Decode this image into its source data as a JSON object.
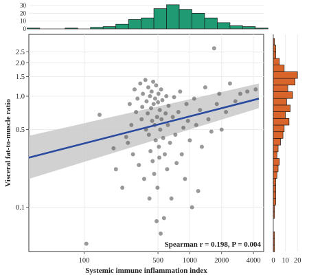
{
  "colors": {
    "points": "#555555",
    "line": "#2a4aa0",
    "ribbon": "#c9c9c9",
    "top_hist": "#1f9a73",
    "right_hist": "#d9652a",
    "grid": "#ececec"
  },
  "chart_data": [
    {
      "type": "scatter",
      "xlabel": "Systemic immune inflammation index",
      "ylabel": "Visceral fat-to-muscle ratio",
      "x_scale": "log",
      "y_scale": "log",
      "xlim": [
        30,
        5000
      ],
      "ylim": [
        0.04,
        3.6
      ],
      "x_ticks": [
        100,
        500,
        1000,
        2000,
        4000
      ],
      "y_ticks": [
        0.1,
        0.5,
        1.0,
        1.5,
        2.0,
        2.5
      ],
      "y_tick_labels": [
        "0.1",
        "0.5",
        "1.0",
        "1.5",
        "2.0",
        "2.5"
      ],
      "annotation": "Spearman r = 0.198, P = 0.004",
      "trend_line": {
        "type": "linear (log-log)",
        "x": [
          30,
          4500
        ],
        "y": [
          0.28,
          0.95
        ],
        "ci_lower": [
          0.18,
          0.78
        ],
        "ci_upper": [
          0.44,
          1.3
        ]
      },
      "points": [
        {
          "x": 105,
          "y": 0.047
        },
        {
          "x": 140,
          "y": 0.68
        },
        {
          "x": 190,
          "y": 0.34
        },
        {
          "x": 200,
          "y": 0.22
        },
        {
          "x": 230,
          "y": 0.15
        },
        {
          "x": 250,
          "y": 0.43
        },
        {
          "x": 260,
          "y": 0.38
        },
        {
          "x": 270,
          "y": 0.85
        },
        {
          "x": 280,
          "y": 0.55
        },
        {
          "x": 290,
          "y": 0.3
        },
        {
          "x": 300,
          "y": 1.15
        },
        {
          "x": 310,
          "y": 0.72
        },
        {
          "x": 320,
          "y": 0.95
        },
        {
          "x": 330,
          "y": 0.24
        },
        {
          "x": 340,
          "y": 1.3
        },
        {
          "x": 350,
          "y": 0.62
        },
        {
          "x": 355,
          "y": 0.8
        },
        {
          "x": 360,
          "y": 1.05
        },
        {
          "x": 370,
          "y": 0.18
        },
        {
          "x": 380,
          "y": 1.4
        },
        {
          "x": 385,
          "y": 0.5
        },
        {
          "x": 390,
          "y": 0.9
        },
        {
          "x": 400,
          "y": 0.7
        },
        {
          "x": 405,
          "y": 1.2
        },
        {
          "x": 410,
          "y": 0.45
        },
        {
          "x": 415,
          "y": 0.12
        },
        {
          "x": 420,
          "y": 1.0
        },
        {
          "x": 425,
          "y": 0.32
        },
        {
          "x": 430,
          "y": 0.78
        },
        {
          "x": 435,
          "y": 1.1
        },
        {
          "x": 440,
          "y": 0.6
        },
        {
          "x": 445,
          "y": 0.26
        },
        {
          "x": 450,
          "y": 1.35
        },
        {
          "x": 455,
          "y": 0.85
        },
        {
          "x": 460,
          "y": 0.2
        },
        {
          "x": 465,
          "y": 0.55
        },
        {
          "x": 470,
          "y": 0.95
        },
        {
          "x": 475,
          "y": 0.4
        },
        {
          "x": 480,
          "y": 1.25
        },
        {
          "x": 485,
          "y": 0.075
        },
        {
          "x": 490,
          "y": 0.65
        },
        {
          "x": 495,
          "y": 0.15
        },
        {
          "x": 500,
          "y": 0.88
        },
        {
          "x": 505,
          "y": 1.05
        },
        {
          "x": 510,
          "y": 0.35
        },
        {
          "x": 515,
          "y": 0.28
        },
        {
          "x": 520,
          "y": 0.75
        },
        {
          "x": 525,
          "y": 0.5
        },
        {
          "x": 530,
          "y": 0.058
        },
        {
          "x": 535,
          "y": 1.15
        },
        {
          "x": 540,
          "y": 0.62
        },
        {
          "x": 550,
          "y": 0.92
        },
        {
          "x": 560,
          "y": 0.42
        },
        {
          "x": 570,
          "y": 0.08
        },
        {
          "x": 580,
          "y": 0.3
        },
        {
          "x": 590,
          "y": 0.7
        },
        {
          "x": 600,
          "y": 1.0
        },
        {
          "x": 610,
          "y": 0.22
        },
        {
          "x": 620,
          "y": 0.55
        },
        {
          "x": 630,
          "y": 0.82
        },
        {
          "x": 650,
          "y": 0.38
        },
        {
          "x": 670,
          "y": 0.12
        },
        {
          "x": 690,
          "y": 0.65
        },
        {
          "x": 710,
          "y": 0.98
        },
        {
          "x": 730,
          "y": 0.45
        },
        {
          "x": 750,
          "y": 0.25
        },
        {
          "x": 780,
          "y": 0.72
        },
        {
          "x": 810,
          "y": 1.1
        },
        {
          "x": 840,
          "y": 0.3
        },
        {
          "x": 870,
          "y": 0.52
        },
        {
          "x": 900,
          "y": 0.18
        },
        {
          "x": 930,
          "y": 0.85
        },
        {
          "x": 960,
          "y": 0.6
        },
        {
          "x": 1000,
          "y": 0.4
        },
        {
          "x": 1050,
          "y": 0.1
        },
        {
          "x": 1100,
          "y": 0.95
        },
        {
          "x": 1150,
          "y": 0.55
        },
        {
          "x": 1200,
          "y": 0.14
        },
        {
          "x": 1250,
          "y": 0.75
        },
        {
          "x": 1300,
          "y": 0.35
        },
        {
          "x": 1400,
          "y": 1.2
        },
        {
          "x": 1500,
          "y": 0.62
        },
        {
          "x": 1600,
          "y": 0.48
        },
        {
          "x": 1700,
          "y": 2.7
        },
        {
          "x": 1800,
          "y": 0.85
        },
        {
          "x": 1900,
          "y": 1.05
        },
        {
          "x": 2000,
          "y": 0.5
        },
        {
          "x": 2200,
          "y": 0.72
        },
        {
          "x": 2400,
          "y": 1.3
        },
        {
          "x": 2700,
          "y": 0.9
        },
        {
          "x": 3000,
          "y": 1.05
        },
        {
          "x": 3500,
          "y": 1.1
        },
        {
          "x": 4200,
          "y": 1.15
        }
      ]
    },
    {
      "type": "bar",
      "role": "top marginal histogram",
      "orientation": "vertical",
      "y_ticks": [
        0,
        10,
        20,
        30
      ],
      "bins_log10_x_edges": [
        1.46,
        1.58,
        1.7,
        1.82,
        1.94,
        2.06,
        2.18,
        2.3,
        2.42,
        2.54,
        2.66,
        2.78,
        2.9,
        3.02,
        3.14,
        3.26,
        3.38,
        3.5,
        3.62,
        3.74
      ],
      "values": [
        1,
        0,
        0,
        1,
        0,
        2,
        3,
        6,
        12,
        14,
        26,
        31,
        25,
        20,
        14,
        8,
        4,
        3,
        1
      ]
    },
    {
      "type": "bar",
      "role": "right marginal histogram",
      "orientation": "horizontal",
      "x_ticks": [
        0,
        10,
        20
      ],
      "bins_log10_y_edges": [
        -1.4,
        -1.34,
        -1.28,
        -1.22,
        -1.16,
        -1.1,
        -1.04,
        -0.98,
        -0.92,
        -0.86,
        -0.8,
        -0.74,
        -0.68,
        -0.62,
        -0.56,
        -0.5,
        -0.44,
        -0.38,
        -0.32,
        -0.26,
        -0.2,
        -0.14,
        -0.08,
        -0.02,
        0.04,
        0.1,
        0.16,
        0.22,
        0.28,
        0.34,
        0.4,
        0.46,
        0.52
      ],
      "values": [
        1,
        1,
        1,
        0,
        0,
        1,
        1,
        2,
        2,
        2,
        2,
        3,
        4,
        5,
        3,
        4,
        6,
        8,
        9,
        13,
        10,
        14,
        11,
        16,
        12,
        18,
        20,
        9,
        5,
        2,
        2,
        1
      ]
    }
  ]
}
